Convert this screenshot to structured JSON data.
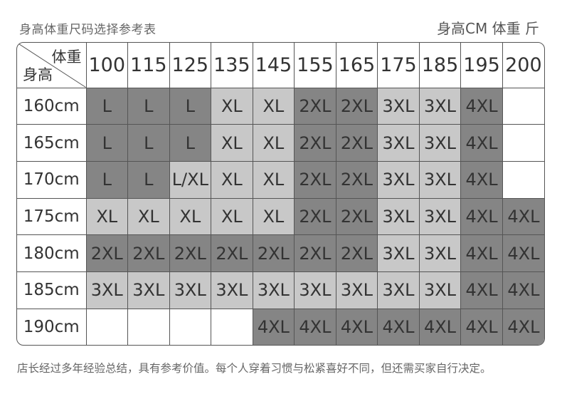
{
  "title": "身高体重尺码选择参考表",
  "unit_label": "身高CM 体重 斤",
  "corner": {
    "weight_label": "体重",
    "height_label": "身高"
  },
  "colors": {
    "dark": "#858585",
    "light": "#c8c8c8",
    "white": "#ffffff"
  },
  "weights": [
    "100",
    "115",
    "125",
    "135",
    "145",
    "155",
    "165",
    "175",
    "185",
    "195",
    "200"
  ],
  "rows": [
    {
      "height": "160cm",
      "sizes": [
        "L",
        "L",
        "L",
        "XL",
        "XL",
        "2XL",
        "2XL",
        "3XL",
        "3XL",
        "4XL",
        ""
      ],
      "tones": [
        "dark",
        "dark",
        "dark",
        "light",
        "light",
        "dark",
        "dark",
        "light",
        "light",
        "dark",
        "white"
      ]
    },
    {
      "height": "165cm",
      "sizes": [
        "L",
        "L",
        "L",
        "XL",
        "XL",
        "2XL",
        "2XL",
        "3XL",
        "3XL",
        "4XL",
        ""
      ],
      "tones": [
        "dark",
        "dark",
        "dark",
        "light",
        "light",
        "dark",
        "dark",
        "light",
        "light",
        "dark",
        "white"
      ]
    },
    {
      "height": "170cm",
      "sizes": [
        "L",
        "L",
        "L/XL",
        "XL",
        "XL",
        "2XL",
        "2XL",
        "3XL",
        "3XL",
        "4XL",
        ""
      ],
      "tones": [
        "dark",
        "dark",
        "light",
        "light",
        "light",
        "dark",
        "dark",
        "light",
        "light",
        "dark",
        "white"
      ]
    },
    {
      "height": "175cm",
      "sizes": [
        "XL",
        "XL",
        "XL",
        "XL",
        "XL",
        "2XL",
        "2XL",
        "3XL",
        "3XL",
        "4XL",
        "4XL"
      ],
      "tones": [
        "light",
        "light",
        "light",
        "light",
        "light",
        "dark",
        "dark",
        "light",
        "light",
        "dark",
        "dark"
      ]
    },
    {
      "height": "180cm",
      "sizes": [
        "2XL",
        "2XL",
        "2XL",
        "2XL",
        "2XL",
        "2XL",
        "2XL",
        "3XL",
        "3XL",
        "4XL",
        "4XL"
      ],
      "tones": [
        "dark",
        "dark",
        "dark",
        "dark",
        "dark",
        "dark",
        "dark",
        "light",
        "light",
        "dark",
        "dark"
      ]
    },
    {
      "height": "185cm",
      "sizes": [
        "3XL",
        "3XL",
        "3XL",
        "3XL",
        "3XL",
        "3XL",
        "3XL",
        "3XL",
        "3XL",
        "4XL",
        "4XL"
      ],
      "tones": [
        "light",
        "light",
        "light",
        "light",
        "light",
        "light",
        "light",
        "light",
        "light",
        "dark",
        "dark"
      ]
    },
    {
      "height": "190cm",
      "sizes": [
        "",
        "",
        "",
        "",
        "4XL",
        "4XL",
        "4XL",
        "4XL",
        "4XL",
        "4XL",
        "4XL"
      ],
      "tones": [
        "white",
        "white",
        "white",
        "white",
        "dark",
        "dark",
        "dark",
        "dark",
        "dark",
        "dark",
        "dark"
      ]
    }
  ],
  "note": "店长经过多年经验总结，具有参考价值。每个人穿着习惯与松紧喜好不同，但还需买家自行决定。"
}
